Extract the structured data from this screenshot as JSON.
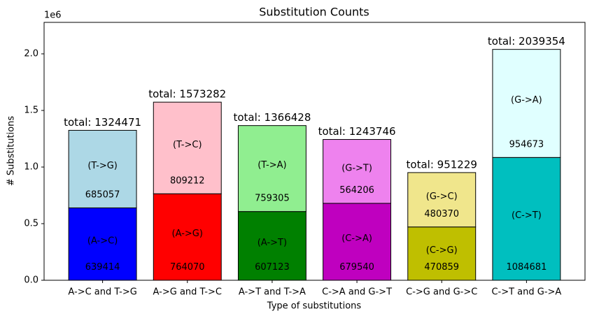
{
  "chart_data": {
    "type": "stacked_bar",
    "title": "Substitution Counts",
    "x_label": "Type of substitutions",
    "y_label": "# Substitutions",
    "y_offset_label": "1e6",
    "categories": [
      "A->C and T->G",
      "A->G and T->C",
      "A->T and T->A",
      "C->A and G->T",
      "C->G and G->C",
      "C->T and G->A"
    ],
    "series": [
      {
        "colors": [
          "#0000ff",
          "#ff0000",
          "#008000",
          "#bf00bf",
          "#bfbf00",
          "#00bfbf"
        ],
        "point_labels": [
          "(A->C)",
          "(A->G)",
          "(A->T)",
          "(C->A)",
          "(C->G)",
          "(C->T)"
        ],
        "values": [
          639414,
          764070,
          607123,
          679540,
          470859,
          1084681
        ]
      },
      {
        "colors": [
          "#add8e6",
          "#ffc0cb",
          "#90ee90",
          "#ee82ee",
          "#f0e68c",
          "#e0ffff"
        ],
        "point_labels": [
          "(T->G)",
          "(T->C)",
          "(T->A)",
          "(G->T)",
          "(G->C)",
          "(G->A)"
        ],
        "values": [
          685057,
          809212,
          759305,
          564206,
          480370,
          954673
        ]
      }
    ],
    "totals": [
      1324471,
      1573282,
      1366428,
      1243746,
      951229,
      2039354
    ],
    "total_labels": [
      "total: 1324471",
      "total: 1573282",
      "total: 1366428",
      "total: 1243746",
      "total: 951229",
      "total: 2039354"
    ],
    "ylim": [
      0,
      2278000
    ],
    "yticks": [
      {
        "value": 0,
        "label": "0.0"
      },
      {
        "value": 500000,
        "label": "0.5"
      },
      {
        "value": 1000000,
        "label": "1.0"
      },
      {
        "value": 1500000,
        "label": "1.5"
      },
      {
        "value": 2000000,
        "label": "2.0"
      }
    ]
  }
}
